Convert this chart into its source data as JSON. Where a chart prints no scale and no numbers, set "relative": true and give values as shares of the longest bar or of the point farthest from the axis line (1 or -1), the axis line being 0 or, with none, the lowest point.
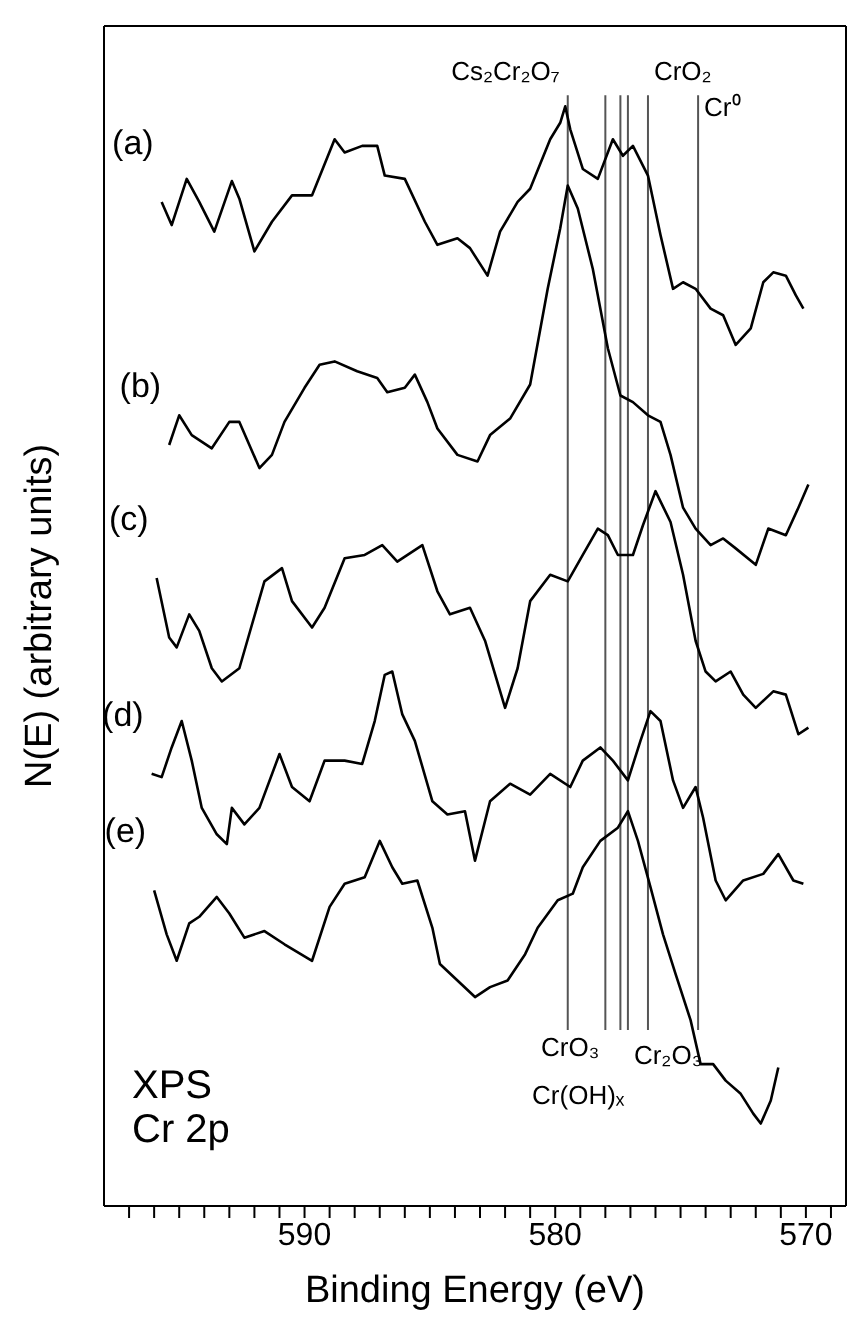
{
  "chart_data": {
    "type": "line",
    "relative": true,
    "xlabel": "Binding Energy (eV)",
    "ylabel": "N(E) (arbitrary units)",
    "annotations": [
      "XPS",
      "Cr 2p"
    ],
    "xlim": [
      598,
      568.4
    ],
    "xticks": [
      {
        "value": 597,
        "label": null
      },
      {
        "value": 596,
        "label": null
      },
      {
        "value": 595,
        "label": null
      },
      {
        "value": 594,
        "label": null
      },
      {
        "value": 593,
        "label": null
      },
      {
        "value": 592,
        "label": null
      },
      {
        "value": 591,
        "label": null
      },
      590,
      {
        "value": 589,
        "label": null
      },
      {
        "value": 588,
        "label": null
      },
      {
        "value": 587,
        "label": null
      },
      {
        "value": 586,
        "label": null
      },
      {
        "value": 585,
        "label": null
      },
      {
        "value": 584,
        "label": null
      },
      {
        "value": 583,
        "label": null
      },
      {
        "value": 582,
        "label": null
      },
      {
        "value": 581,
        "label": null
      },
      580,
      {
        "value": 579,
        "label": null
      },
      {
        "value": 578,
        "label": null
      },
      {
        "value": 577,
        "label": null
      },
      {
        "value": 576,
        "label": null
      },
      {
        "value": 575,
        "label": null
      },
      {
        "value": 574,
        "label": null
      },
      {
        "value": 573,
        "label": null
      },
      {
        "value": 572,
        "label": null
      },
      {
        "value": 571,
        "label": null
      },
      570,
      {
        "value": 569,
        "label": null
      }
    ],
    "grid": false,
    "legend": false,
    "marker": "none",
    "line_style": "solid",
    "ref_lines": [
      {
        "axis": "x",
        "value": 579.5,
        "label": "Cs₂Cr₂O₇",
        "color": "#555555"
      },
      {
        "axis": "x",
        "value": 576.3,
        "label": "CrO₂",
        "color": "#555555"
      },
      {
        "axis": "x",
        "value": 574.3,
        "label": "Cr⁰",
        "color": "#555555"
      },
      {
        "axis": "x",
        "value": 578.0,
        "label": "CrO₃",
        "color": "#555555"
      },
      {
        "axis": "x",
        "value": 577.4,
        "label": "Cr(OH)ₓ",
        "color": "#555555"
      },
      {
        "axis": "x",
        "value": 577.1,
        "label": "Cr₂O₃",
        "color": "#555555"
      }
    ],
    "series": [
      {
        "name": "(a)",
        "color": "#000000",
        "x": [
          595.7,
          595.3,
          594.7,
          594.2,
          593.6,
          592.9,
          592.6,
          592.0,
          591.3,
          590.5,
          589.7,
          588.8,
          588.4,
          587.7,
          587.1,
          586.8,
          586.0,
          585.2,
          584.7,
          583.9,
          583.4,
          582.7,
          582.2,
          581.5,
          581.0,
          580.2,
          579.8,
          579.6,
          579.4,
          578.9,
          578.3,
          577.7,
          577.3,
          576.9,
          576.3,
          575.8,
          575.3,
          574.9,
          574.4,
          573.8,
          573.3,
          572.8,
          572.2,
          571.7,
          571.3,
          570.8,
          570.4,
          570.1
        ],
        "values": [
          0.913,
          0.892,
          0.934,
          0.913,
          0.886,
          0.932,
          0.916,
          0.868,
          0.895,
          0.919,
          0.919,
          0.97,
          0.958,
          0.964,
          0.964,
          0.937,
          0.934,
          0.895,
          0.874,
          0.88,
          0.871,
          0.846,
          0.886,
          0.913,
          0.925,
          0.97,
          0.985,
          1.0,
          0.979,
          0.943,
          0.934,
          0.97,
          0.955,
          0.964,
          0.937,
          0.883,
          0.834,
          0.84,
          0.834,
          0.816,
          0.81,
          0.783,
          0.798,
          0.84,
          0.849,
          0.846,
          0.828,
          0.816
        ]
      },
      {
        "name": "(b)",
        "color": "#000000",
        "x": [
          595.4,
          595.0,
          594.5,
          593.7,
          593.0,
          592.6,
          591.8,
          591.3,
          590.8,
          590.0,
          589.4,
          588.8,
          587.9,
          587.1,
          586.7,
          586.0,
          585.6,
          585.1,
          584.7,
          583.9,
          583.1,
          582.6,
          581.8,
          581.0,
          580.3,
          579.8,
          579.5,
          579.1,
          578.5,
          577.9,
          577.4,
          576.9,
          576.3,
          575.8,
          575.4,
          574.9,
          574.4,
          573.8,
          573.3,
          572.8,
          572.0,
          571.5,
          570.8,
          570.3,
          569.9
        ],
        "values": [
          0.692,
          0.719,
          0.701,
          0.689,
          0.713,
          0.713,
          0.671,
          0.683,
          0.713,
          0.744,
          0.765,
          0.768,
          0.759,
          0.753,
          0.74,
          0.744,
          0.756,
          0.731,
          0.707,
          0.683,
          0.677,
          0.701,
          0.716,
          0.747,
          0.834,
          0.889,
          0.928,
          0.907,
          0.852,
          0.78,
          0.737,
          0.731,
          0.719,
          0.713,
          0.683,
          0.635,
          0.616,
          0.601,
          0.607,
          0.598,
          0.583,
          0.616,
          0.61,
          0.635,
          0.656
        ]
      },
      {
        "name": "(c)",
        "color": "#000000",
        "x": [
          595.9,
          595.4,
          595.1,
          594.6,
          594.2,
          593.7,
          593.3,
          592.6,
          591.6,
          590.9,
          590.5,
          589.7,
          589.2,
          588.4,
          587.6,
          586.9,
          586.3,
          585.3,
          584.7,
          584.2,
          583.4,
          582.8,
          582.0,
          581.5,
          581.0,
          580.2,
          579.5,
          578.9,
          578.3,
          577.9,
          577.5,
          576.9,
          576.5,
          576.0,
          575.4,
          574.9,
          574.4,
          574.0,
          573.6,
          573.0,
          572.5,
          572.0,
          571.3,
          570.8,
          570.3,
          569.9
        ],
        "values": [
          0.571,
          0.517,
          0.508,
          0.538,
          0.523,
          0.489,
          0.477,
          0.489,
          0.568,
          0.58,
          0.55,
          0.526,
          0.544,
          0.589,
          0.592,
          0.601,
          0.586,
          0.601,
          0.559,
          0.538,
          0.544,
          0.514,
          0.453,
          0.489,
          0.55,
          0.574,
          0.568,
          0.592,
          0.616,
          0.61,
          0.592,
          0.592,
          0.619,
          0.65,
          0.622,
          0.574,
          0.514,
          0.486,
          0.477,
          0.486,
          0.465,
          0.453,
          0.468,
          0.465,
          0.429,
          0.435
        ]
      },
      {
        "name": "(d)",
        "color": "#000000",
        "x": [
          596.1,
          595.7,
          595.3,
          594.9,
          594.5,
          594.1,
          593.5,
          593.1,
          592.9,
          592.4,
          591.8,
          591.0,
          590.5,
          589.8,
          589.2,
          588.4,
          587.7,
          587.2,
          586.8,
          586.5,
          586.1,
          585.6,
          584.9,
          584.3,
          583.6,
          583.2,
          582.6,
          581.8,
          581.0,
          580.2,
          579.4,
          578.9,
          578.2,
          577.7,
          577.1,
          576.6,
          576.2,
          575.8,
          575.3,
          574.9,
          574.4,
          574.1,
          573.6,
          573.2,
          572.5,
          571.7,
          571.1,
          570.5,
          570.1
        ],
        "values": [
          0.393,
          0.39,
          0.417,
          0.441,
          0.405,
          0.362,
          0.338,
          0.329,
          0.362,
          0.347,
          0.362,
          0.411,
          0.381,
          0.368,
          0.405,
          0.405,
          0.402,
          0.441,
          0.483,
          0.486,
          0.447,
          0.423,
          0.368,
          0.356,
          0.359,
          0.314,
          0.368,
          0.384,
          0.374,
          0.393,
          0.381,
          0.405,
          0.417,
          0.405,
          0.387,
          0.423,
          0.45,
          0.441,
          0.387,
          0.362,
          0.381,
          0.353,
          0.296,
          0.278,
          0.296,
          0.302,
          0.32,
          0.296,
          0.293
        ]
      },
      {
        "name": "(e)",
        "color": "#000000",
        "x": [
          596.0,
          595.5,
          595.1,
          594.6,
          594.2,
          593.5,
          593.0,
          592.4,
          591.6,
          590.8,
          589.7,
          589.0,
          588.4,
          587.6,
          587.0,
          586.5,
          586.1,
          585.5,
          584.9,
          584.6,
          583.9,
          583.2,
          582.6,
          581.9,
          581.2,
          580.7,
          579.9,
          579.3,
          578.9,
          578.2,
          577.5,
          577.1,
          576.7,
          576.2,
          575.7,
          575.2,
          574.6,
          574.2,
          573.7,
          573.2,
          572.6,
          572.1,
          571.8,
          571.4,
          571.1
        ],
        "values": [
          0.287,
          0.247,
          0.223,
          0.257,
          0.263,
          0.281,
          0.266,
          0.244,
          0.25,
          0.238,
          0.223,
          0.272,
          0.293,
          0.299,
          0.332,
          0.308,
          0.293,
          0.296,
          0.253,
          0.22,
          0.205,
          0.19,
          0.199,
          0.205,
          0.229,
          0.253,
          0.278,
          0.284,
          0.308,
          0.332,
          0.344,
          0.359,
          0.332,
          0.29,
          0.247,
          0.211,
          0.169,
          0.129,
          0.129,
          0.114,
          0.102,
          0.084,
          0.075,
          0.096,
          0.126
        ]
      }
    ]
  }
}
